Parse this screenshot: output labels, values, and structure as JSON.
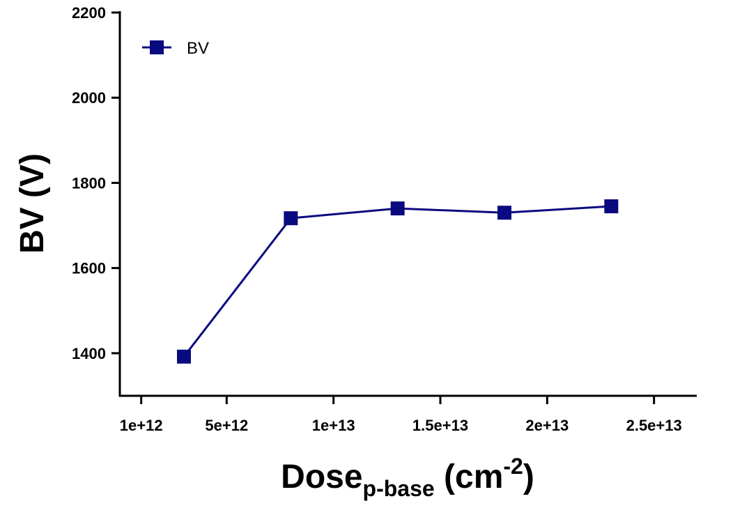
{
  "chart_data": {
    "type": "line",
    "x_ticks": [
      {
        "value": 1000000000000,
        "label": "1e+12"
      },
      {
        "value": 5000000000000,
        "label": "5e+12"
      },
      {
        "value": 10000000000000,
        "label": "1e+13"
      },
      {
        "value": 15000000000000,
        "label": "1.5e+13"
      },
      {
        "value": 20000000000000,
        "label": "2e+13"
      },
      {
        "value": 25000000000000,
        "label": "2.5e+13"
      }
    ],
    "y_ticks": [
      {
        "value": 1400,
        "label": "1400"
      },
      {
        "value": 1600,
        "label": "1600"
      },
      {
        "value": 1800,
        "label": "1800"
      },
      {
        "value": 2000,
        "label": "2000"
      },
      {
        "value": 2200,
        "label": "2200"
      }
    ],
    "xlim": [
      0,
      27000000000000
    ],
    "ylim": [
      1300,
      2200
    ],
    "series": [
      {
        "name": "BV",
        "color": "#0a0a80",
        "marker": "square",
        "points": [
          {
            "x": 3000000000000,
            "y": 1392
          },
          {
            "x": 8000000000000,
            "y": 1717
          },
          {
            "x": 13000000000000,
            "y": 1740
          },
          {
            "x": 18000000000000,
            "y": 1730
          },
          {
            "x": 23000000000000,
            "y": 1745
          }
        ]
      }
    ],
    "xlabel": {
      "main": "Dose",
      "sub": "p-base",
      "unit_open": " (cm",
      "sup": "-2",
      "unit_close": ")"
    },
    "ylabel": "BV (V)",
    "legend": {
      "placement": "top-left",
      "label": "BV"
    },
    "grid": false
  }
}
